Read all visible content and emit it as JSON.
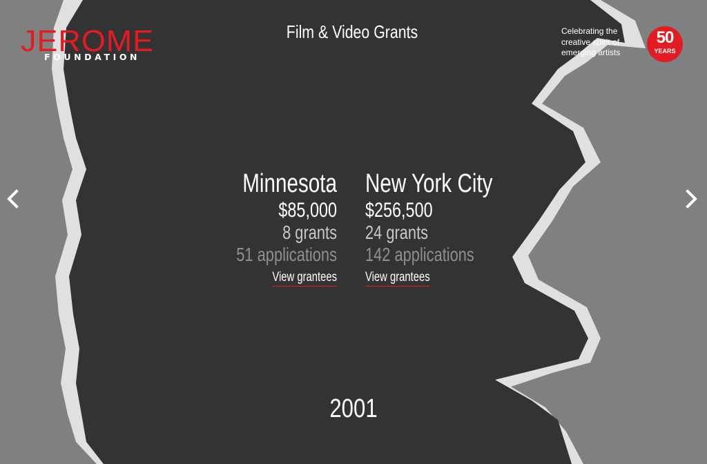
{
  "header": {
    "logo_primary": "JEROME",
    "logo_secondary": "FOUNDATION",
    "title": "Film & Video Grants",
    "tagline_lines": [
      "Celebrating the",
      "creative spirit of",
      "emerging artists"
    ],
    "anniversary_number": "50",
    "anniversary_word": "YEARS"
  },
  "navigation": {
    "prev_icon": "chevron-left-icon",
    "next_icon": "chevron-right-icon"
  },
  "regions": [
    {
      "name": "Minnesota",
      "amount": "$85,000",
      "grants": "8 grants",
      "applications": "51 applications",
      "link_label": "View grantees"
    },
    {
      "name": "New York City",
      "amount": "$256,500",
      "grants": "24 grants",
      "applications": "142 applications",
      "link_label": "View grantees"
    }
  ],
  "year": "2001",
  "colors": {
    "brand_red": "#e31b23",
    "background_gray": "#7f8080",
    "map_dark": "#333333",
    "map_border": "#e0e0e0",
    "text_white": "#ffffff",
    "text_light_gray": "#c8c8c8",
    "text_mid_gray": "#8f8f8f"
  }
}
